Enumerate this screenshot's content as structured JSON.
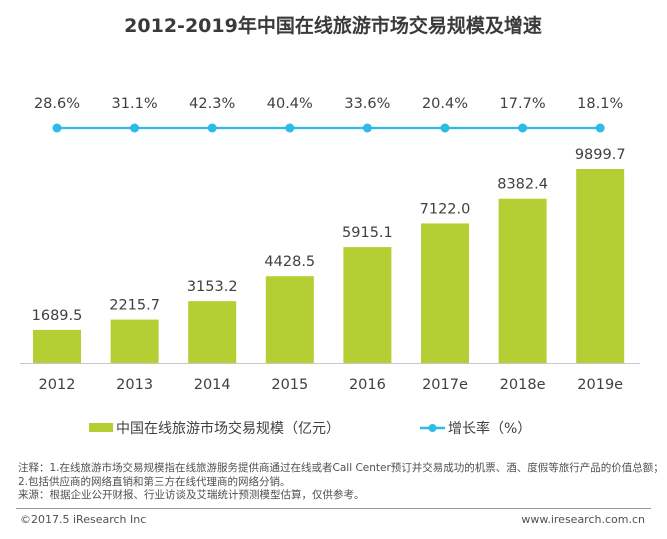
{
  "chart_data": {
    "type": "bar",
    "title": "2012-2019年中国在线旅游市场交易规模及增速",
    "categories": [
      "2012",
      "2013",
      "2014",
      "2015",
      "2016",
      "2017e",
      "2018e",
      "2019e"
    ],
    "series": [
      {
        "name": "中国在线旅游市场交易规模（亿元）",
        "kind": "bar",
        "color": "#b3cf33",
        "values": [
          1689.5,
          2215.7,
          3153.2,
          4428.5,
          5915.1,
          7122.0,
          8382.4,
          9899.7
        ],
        "labels": [
          "1689.5",
          "2215.7",
          "3153.2",
          "4428.5",
          "5915.1",
          "7122.0",
          "8382.4",
          "9899.7"
        ]
      },
      {
        "name": "增长率（%）",
        "kind": "line",
        "color": "#2bbbe6",
        "values": [
          28.6,
          31.1,
          42.3,
          40.4,
          33.6,
          20.4,
          17.7,
          18.1
        ],
        "labels": [
          "28.6%",
          "31.1%",
          "42.3%",
          "40.4%",
          "33.6%",
          "20.4%",
          "17.7%",
          "18.1%"
        ]
      }
    ],
    "xlabel": "",
    "ylabel": "",
    "ylim": [
      0,
      9899.7
    ],
    "grid": false,
    "legend_position": "bottom"
  },
  "notes": {
    "line1": "注释：1.在线旅游市场交易规模指在线旅游服务提供商通过在线或者Call Center预订并交易成功的机票、酒、度假等旅行产品的价值总额；",
    "line2": "2.包括供应商的网络直销和第三方在线代理商的网络分销。",
    "line3": "来源：根据企业公开财报、行业访谈及艾瑞统计预测模型估算，仅供参考。"
  },
  "footer": {
    "copyright": "©2017.5 iResearch Inc",
    "website": "www.iresearch.com.cn"
  }
}
